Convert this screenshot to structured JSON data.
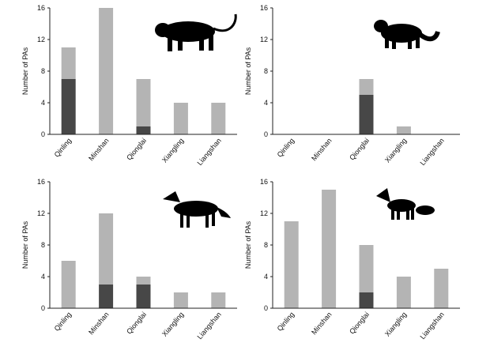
{
  "chart_data": [
    {
      "type": "stacked-bar",
      "ylabel": "Number of PAs",
      "categories": [
        "Qinling",
        "Minshan",
        "Qionglai",
        "Xiangling",
        "Liangshan"
      ],
      "series": [
        {
          "color": "#474747",
          "values": [
            7,
            0,
            1,
            0,
            0
          ]
        },
        {
          "color": "#b4b4b4",
          "values": [
            4,
            16,
            6,
            4,
            4
          ]
        }
      ],
      "ylim": [
        0,
        16
      ],
      "yticks": [
        0,
        4,
        8,
        12,
        16
      ]
    },
    {
      "type": "stacked-bar",
      "ylabel": "Number of PAs",
      "categories": [
        "Qinling",
        "Minshan",
        "Qionglai",
        "Xiangling",
        "Liangshan"
      ],
      "series": [
        {
          "color": "#474747",
          "values": [
            0,
            0,
            5,
            0,
            0
          ]
        },
        {
          "color": "#b4b4b4",
          "values": [
            0,
            0,
            2,
            1,
            0
          ]
        }
      ],
      "ylim": [
        0,
        16
      ],
      "yticks": [
        0,
        4,
        8,
        12,
        16
      ]
    },
    {
      "type": "stacked-bar",
      "ylabel": "Number of PAs",
      "categories": [
        "Qinling",
        "Minshan",
        "Qionglai",
        "Xiangling",
        "Liangshan"
      ],
      "series": [
        {
          "color": "#474747",
          "values": [
            0,
            3,
            3,
            0,
            0
          ]
        },
        {
          "color": "#b4b4b4",
          "values": [
            6,
            9,
            1,
            2,
            2
          ]
        }
      ],
      "ylim": [
        0,
        16
      ],
      "yticks": [
        0,
        4,
        8,
        12,
        16
      ]
    },
    {
      "type": "stacked-bar",
      "ylabel": "Number of PAs",
      "categories": [
        "Qinling",
        "Minshan",
        "Qionglai",
        "Xiangling",
        "Liangshan"
      ],
      "series": [
        {
          "color": "#474747",
          "values": [
            0,
            0,
            2,
            0,
            0
          ]
        },
        {
          "color": "#b4b4b4",
          "values": [
            11,
            15,
            6,
            4,
            5
          ]
        }
      ],
      "ylim": [
        0,
        16
      ],
      "yticks": [
        0,
        4,
        8,
        12,
        16
      ]
    }
  ]
}
